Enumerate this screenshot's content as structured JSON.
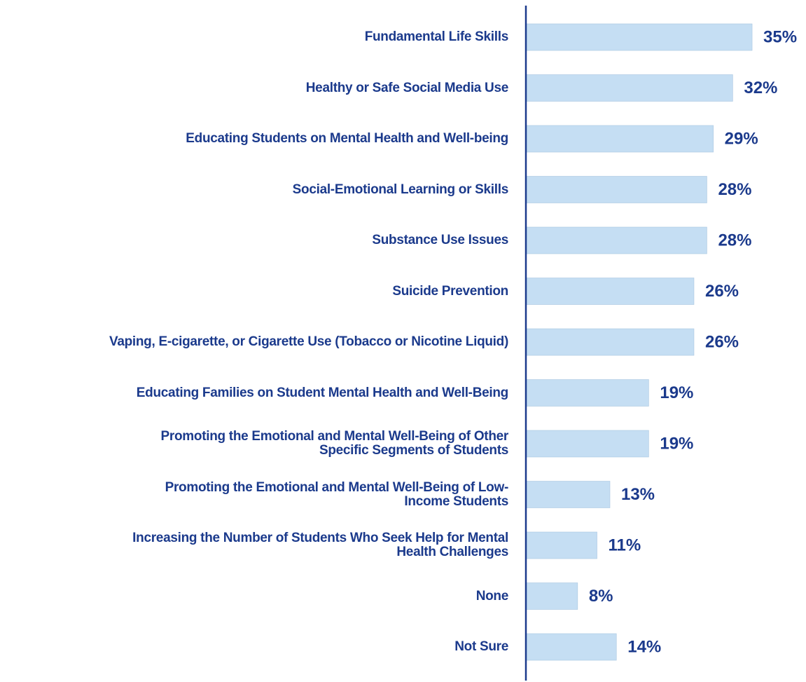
{
  "chart_data": {
    "type": "bar",
    "orientation": "horizontal",
    "categories": [
      "Fundamental Life Skills",
      "Healthy or Safe Social Media Use",
      "Educating Students on Mental Health and Well-being",
      "Social-Emotional Learning or Skills",
      "Substance Use Issues",
      "Suicide Prevention",
      "Vaping, E-cigarette, or Cigarette Use (Tobacco or Nicotine Liquid)",
      "Educating Families on Student Mental Health and Well-Being",
      "Promoting the Emotional and Mental Well-Being of Other\nSpecific Segments of Students",
      "Promoting the Emotional and Mental Well-Being of Low-\nIncome Students",
      "Increasing the Number of Students Who Seek Help for Mental\nHealth Challenges",
      "None",
      "Not Sure"
    ],
    "values": [
      35,
      32,
      29,
      28,
      28,
      26,
      26,
      19,
      19,
      13,
      11,
      8,
      14
    ],
    "value_labels": [
      "35%",
      "32%",
      "29%",
      "28%",
      "28%",
      "26%",
      "26%",
      "19%",
      "19%",
      "13%",
      "11%",
      "8%",
      "14%"
    ],
    "color": "#c5def3",
    "axis_color": "#1b3a8c"
  }
}
